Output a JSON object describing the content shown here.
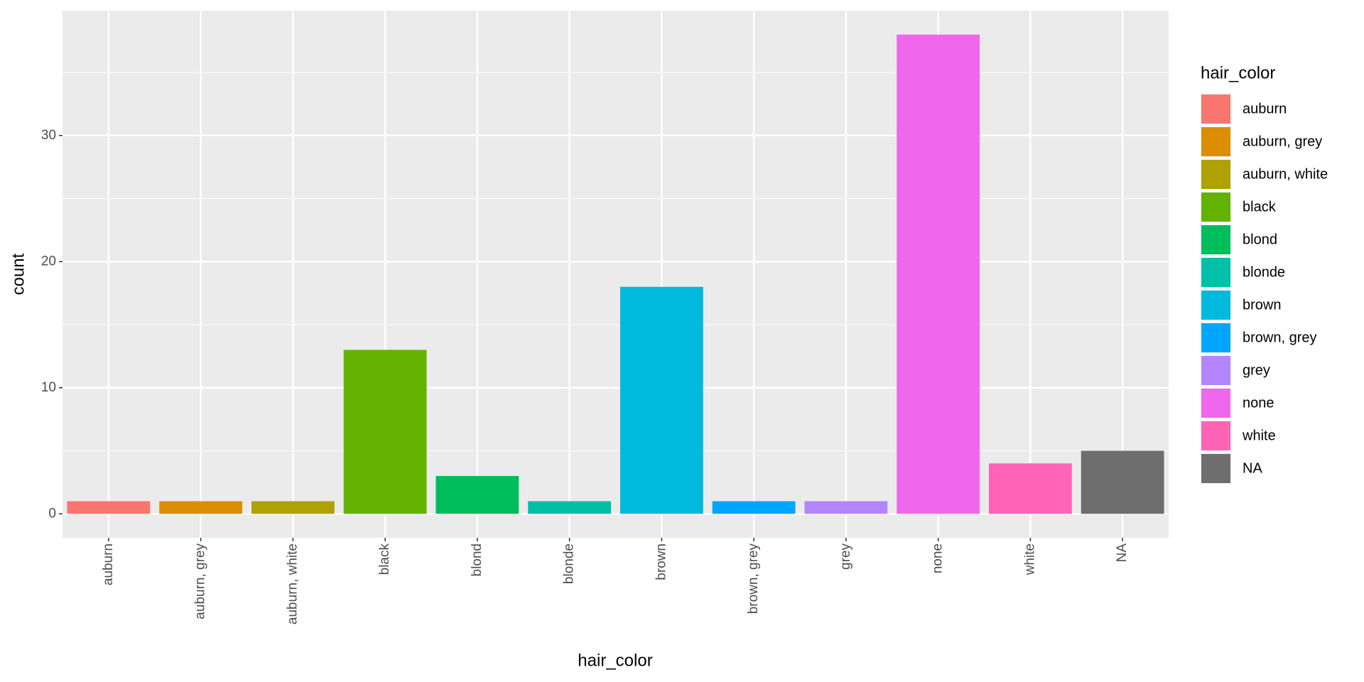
{
  "chart_data": {
    "type": "bar",
    "xlabel": "hair_color",
    "ylabel": "count",
    "legend_title": "hair_color",
    "categories": [
      "auburn",
      "auburn, grey",
      "auburn, white",
      "black",
      "blond",
      "blonde",
      "brown",
      "brown, grey",
      "grey",
      "none",
      "white",
      "NA"
    ],
    "values": [
      1,
      1,
      1,
      13,
      3,
      1,
      18,
      1,
      1,
      38,
      4,
      5
    ],
    "colors": [
      "#F8766D",
      "#DB8E00",
      "#AEA200",
      "#64B200",
      "#00BD5C",
      "#00C1A7",
      "#00BADE",
      "#00A6FF",
      "#B385FF",
      "#EF67EB",
      "#FF63B6",
      "#6E6E6E"
    ],
    "ylim": [
      -1.9,
      39.9
    ],
    "yticks": [
      0,
      10,
      20,
      30
    ],
    "y_minor_ticks": [
      5,
      15,
      25,
      35
    ],
    "grid": true,
    "legend": "right"
  }
}
